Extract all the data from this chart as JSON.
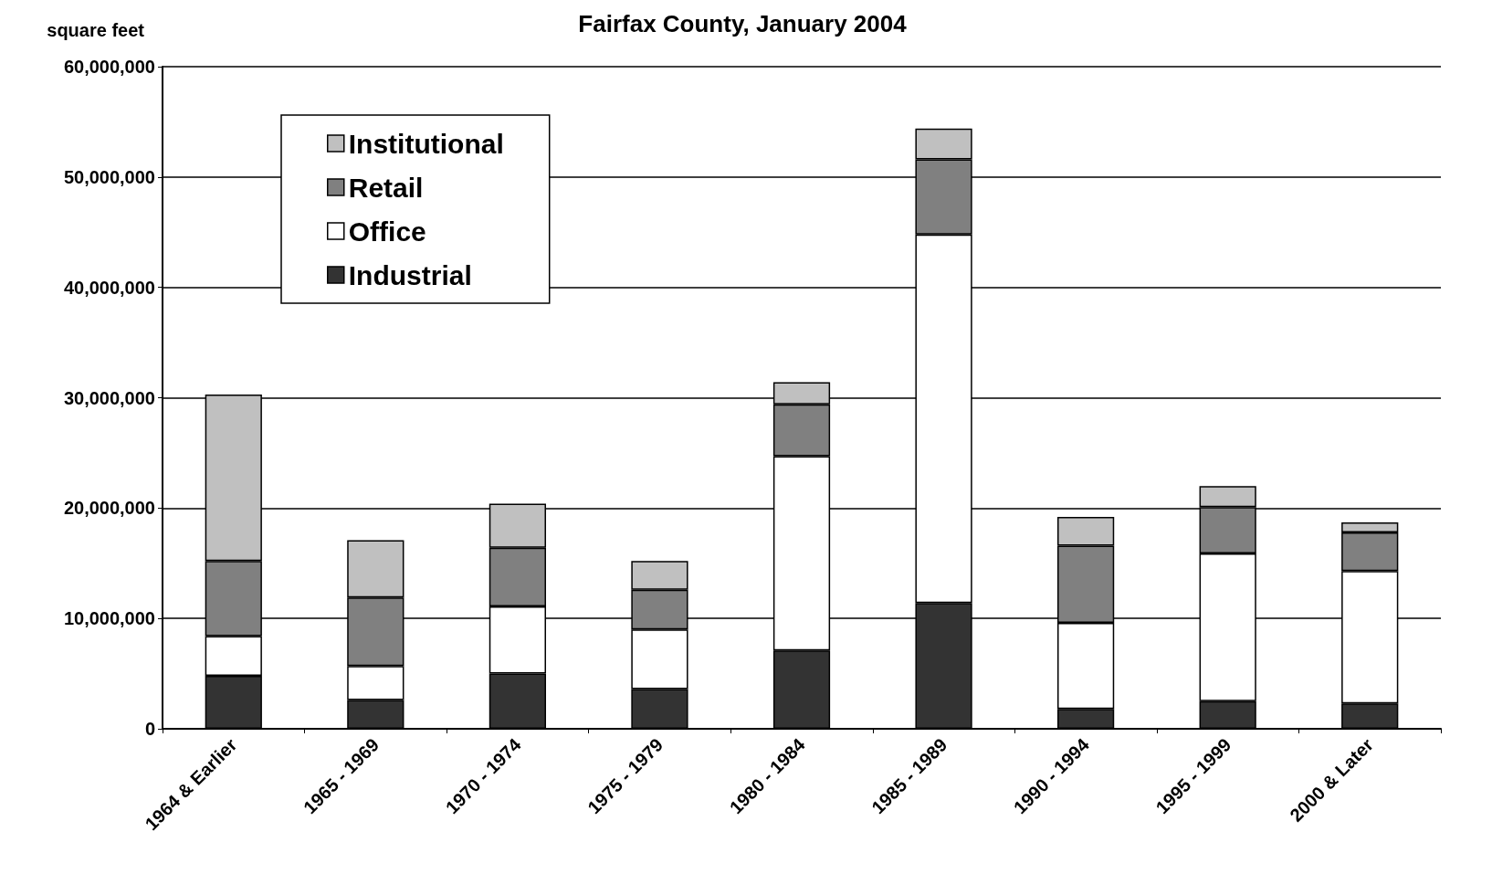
{
  "chart_data": {
    "type": "bar",
    "title": "Fairfax County, January 2004",
    "ylabel": "square feet",
    "stacked": true,
    "categories": [
      "1964 & Earlier",
      "1965 - 1969",
      "1970 - 1974",
      "1975 - 1979",
      "1980 - 1984",
      "1985 - 1989",
      "1990 - 1994",
      "1995 - 1999",
      "2000 & Later"
    ],
    "series": [
      {
        "name": "Industrial",
        "color": "#333333",
        "values": [
          4800000,
          2600000,
          5000000,
          3600000,
          7100000,
          11400000,
          1800000,
          2500000,
          2300000
        ]
      },
      {
        "name": "Office",
        "color": "#ffffff",
        "values": [
          3600000,
          3100000,
          6100000,
          5400000,
          17600000,
          33400000,
          7800000,
          13400000,
          12000000
        ]
      },
      {
        "name": "Retail",
        "color": "#808080",
        "values": [
          6800000,
          6200000,
          5300000,
          3600000,
          4700000,
          6800000,
          7000000,
          4200000,
          3500000
        ]
      },
      {
        "name": "Institutional",
        "color": "#c0c0c0",
        "values": [
          15100000,
          5200000,
          4000000,
          2600000,
          2000000,
          2800000,
          2600000,
          1900000,
          900000
        ]
      }
    ],
    "ylim": [
      0,
      60000000
    ],
    "yticks": [
      0,
      {
        "value": 10000000,
        "label": "10,000,000"
      },
      {
        "value": 20000000,
        "label": "20,000,000"
      },
      {
        "value": 30000000,
        "label": "30,000,000"
      },
      {
        "value": 40000000,
        "label": "40,000,000"
      },
      {
        "value": 50000000,
        "label": "50,000,000"
      },
      {
        "value": 60000000,
        "label": "60,000,000"
      }
    ],
    "grid": "y",
    "legend": "top left"
  }
}
